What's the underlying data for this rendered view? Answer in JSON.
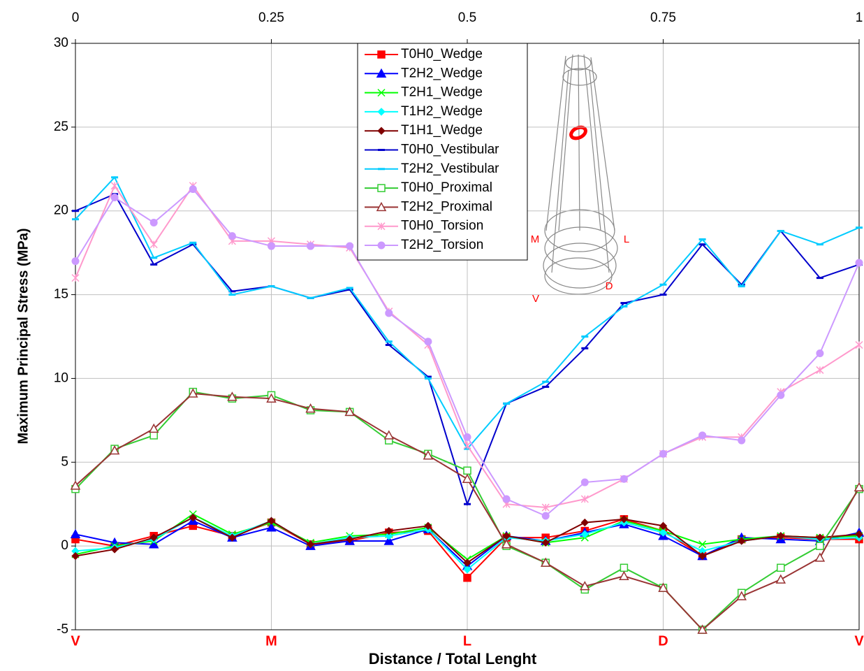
{
  "chart_data": {
    "type": "line",
    "x_label": "Distance / Total Lenght",
    "y_label": "Maximum Principal Stress (MPa)",
    "x": [
      0,
      0.05,
      0.1,
      0.15,
      0.2,
      0.25,
      0.3,
      0.35,
      0.4,
      0.45,
      0.5,
      0.55,
      0.6,
      0.65,
      0.7,
      0.75,
      0.8,
      0.85,
      0.9,
      0.95,
      1
    ],
    "xlim": [
      0,
      1
    ],
    "xticks": [
      0,
      0.25,
      0.5,
      0.75,
      1
    ],
    "bottom_labels": [
      "V",
      "M",
      "L",
      "D",
      "V"
    ],
    "ylim": [
      -5,
      30
    ],
    "yticks": [
      -5,
      0,
      5,
      10,
      15,
      20,
      25,
      30
    ],
    "grid": true,
    "legend": "top-center",
    "inset_labels": [
      "M",
      "L",
      "V",
      "D"
    ],
    "series": [
      {
        "name": "T0H0_Wedge",
        "color": "#ff0000",
        "marker": "square",
        "values": [
          0.4,
          0,
          0.6,
          1.2,
          0.6,
          1.4,
          0.1,
          0.3,
          0.8,
          0.9,
          -1.9,
          0.5,
          0.5,
          0.9,
          1.6,
          0.9,
          -0.6,
          0.4,
          0.5,
          0.4,
          0.4
        ]
      },
      {
        "name": "T2H2_Wedge",
        "color": "#0000ff",
        "marker": "triangle",
        "values": [
          0.7,
          0.2,
          0.1,
          1.5,
          0.5,
          1.1,
          0,
          0.3,
          0.3,
          1,
          -1.2,
          0.6,
          0.3,
          0.8,
          1.3,
          0.6,
          -0.6,
          0.5,
          0.4,
          0.3,
          0.8
        ]
      },
      {
        "name": "T2H1_Wedge",
        "color": "#00ff00",
        "marker": "x",
        "values": [
          -0.5,
          0,
          0.3,
          1.9,
          0.7,
          1.4,
          0.2,
          0.6,
          0.7,
          1.1,
          -0.8,
          0.6,
          0.2,
          0.5,
          1.5,
          0.9,
          0.1,
          0.4,
          0.6,
          0.5,
          0.6
        ]
      },
      {
        "name": "T1H2_Wedge",
        "color": "#00ffff",
        "marker": "diamond",
        "values": [
          -0.3,
          -0.1,
          0.4,
          1.7,
          0.6,
          1.5,
          0.1,
          0.5,
          0.6,
          1,
          -1.4,
          0.5,
          0.3,
          0.7,
          1.4,
          0.8,
          -0.3,
          0.3,
          0.6,
          0.4,
          0.5
        ]
      },
      {
        "name": "T1H1_Wedge",
        "color": "#800000",
        "marker": "diamond",
        "values": [
          -0.6,
          -0.2,
          0.5,
          1.7,
          0.5,
          1.5,
          0.1,
          0.4,
          0.9,
          1.2,
          -1,
          0.6,
          0.2,
          1.4,
          1.6,
          1.2,
          -0.6,
          0.3,
          0.6,
          0.5,
          0.7
        ]
      },
      {
        "name": "T0H0_Vestibular",
        "color": "#0000cc",
        "marker": "dash",
        "values": [
          20,
          21,
          16.8,
          18,
          15.2,
          15.5,
          14.8,
          15.3,
          12,
          10.1,
          2.5,
          8.5,
          9.5,
          11.8,
          14.5,
          15,
          18,
          15.6,
          18.8,
          16,
          16.8
        ]
      },
      {
        "name": "T2H2_Vestibular",
        "color": "#00ccff",
        "marker": "dash",
        "values": [
          19.5,
          22,
          17.2,
          18.1,
          15,
          15.5,
          14.8,
          15.4,
          12.2,
          10,
          5.8,
          8.5,
          9.8,
          12.5,
          14.3,
          15.6,
          18.3,
          15.5,
          18.8,
          18,
          19
        ]
      },
      {
        "name": "T0H0_Proximal",
        "color": "#33cc33",
        "marker": "open-square",
        "values": [
          3.4,
          5.8,
          6.6,
          9.2,
          8.8,
          9,
          8.1,
          8,
          6.3,
          5.5,
          4.5,
          0,
          -1,
          -2.6,
          -1.3,
          -2.5,
          -5,
          -2.8,
          -1.3,
          0,
          3.4
        ]
      },
      {
        "name": "T2H2_Proximal",
        "color": "#993333",
        "marker": "open-triangle",
        "values": [
          3.6,
          5.7,
          7,
          9.1,
          8.9,
          8.8,
          8.2,
          8,
          6.6,
          5.4,
          4,
          0.1,
          -1,
          -2.4,
          -1.8,
          -2.5,
          -5,
          -3,
          -2,
          -0.7,
          3.5
        ]
      },
      {
        "name": "T0H0_Torsion",
        "color": "#ff99cc",
        "marker": "star",
        "values": [
          16,
          21.5,
          18,
          21.5,
          18.2,
          18.2,
          18,
          17.8,
          14,
          12,
          6,
          2.5,
          2.3,
          2.8,
          4,
          5.5,
          6.5,
          6.5,
          9.2,
          10.5,
          12
        ]
      },
      {
        "name": "T2H2_Torsion",
        "color": "#cc99ff",
        "marker": "circle",
        "values": [
          17,
          20.8,
          19.3,
          21.3,
          18.5,
          17.9,
          17.9,
          17.9,
          13.9,
          12.2,
          6.5,
          2.8,
          1.8,
          3.8,
          4,
          5.5,
          6.6,
          6.3,
          9,
          11.5,
          16.9
        ]
      }
    ]
  }
}
